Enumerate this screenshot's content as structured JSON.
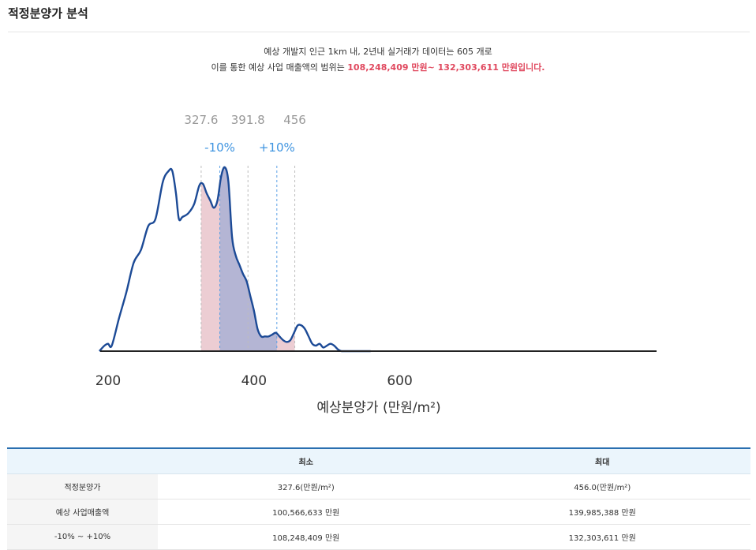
{
  "page_title": "적정분양가 분석",
  "summary": {
    "line1": "예상 개발지 인근 1km 내, 2년내 실거래가 데이터는 605 개로",
    "line2_prefix": "이를 통한 예상 사업 매출액의 범위는 ",
    "line2_highlight": "108,248,409 만원~ 132,303,611 만원입니다."
  },
  "chart_data": {
    "type": "area",
    "xlabel": "예상분양가 (만원/m²)",
    "ylabel": "",
    "xlim": [
      0,
      750
    ],
    "x_ticks": [
      200,
      400,
      600
    ],
    "markers": [
      {
        "x": 327.6,
        "label": "327.6"
      },
      {
        "x": 391.8,
        "label": "391.8"
      },
      {
        "x": 456,
        "label": "456"
      }
    ],
    "band_markers": [
      {
        "x": 353.2,
        "label": "-10%"
      },
      {
        "x": 431.4,
        "label": "+10%"
      }
    ],
    "shaded_ranges": [
      {
        "from": 327.6,
        "to": 456,
        "color": "#e9c4cb"
      },
      {
        "from": 353.2,
        "to": 431.4,
        "color": "#aeb3d4"
      }
    ],
    "line_color": "#1c4a96",
    "density": {
      "x": [
        0,
        188,
        195,
        200,
        205,
        215,
        225,
        235,
        245,
        255,
        265,
        275,
        283,
        288,
        293,
        297,
        302,
        310,
        318,
        325,
        330,
        335,
        340,
        345,
        350,
        355,
        360,
        365,
        370,
        375,
        380,
        385,
        390,
        395,
        400,
        405,
        410,
        415,
        420,
        425,
        430,
        435,
        440,
        445,
        450,
        455,
        460,
        465,
        470,
        475,
        480,
        485,
        490,
        495,
        500,
        505,
        510,
        515,
        520,
        525,
        530,
        535,
        540,
        545,
        550,
        555,
        560,
        750
      ],
      "y": [
        0,
        0,
        3,
        4,
        3,
        18,
        32,
        48,
        55,
        68,
        72,
        92,
        98,
        98,
        86,
        72,
        73,
        75,
        80,
        90,
        91,
        86,
        82,
        78,
        82,
        95,
        100,
        92,
        62,
        52,
        47,
        42,
        38,
        30,
        22,
        12,
        8,
        8,
        8,
        9,
        10,
        8,
        6,
        5,
        6,
        10,
        14,
        14,
        12,
        8,
        4,
        3,
        4,
        2,
        3,
        4,
        3,
        1,
        0,
        0,
        0,
        0,
        0,
        0,
        0,
        0,
        0,
        0
      ]
    }
  },
  "table": {
    "headers": [
      "",
      "최소",
      "최대"
    ],
    "rows": [
      {
        "label": "적정분양가",
        "min": "327.6(만원/m²)",
        "max": "456.0(만원/m²)"
      },
      {
        "label": "예상 사업매출액",
        "min": "100,566,633 만원",
        "max": "139,985,388 만원"
      },
      {
        "label": "-10% ~ +10%",
        "min": "108,248,409 만원",
        "max": "132,303,611 만원"
      }
    ]
  }
}
